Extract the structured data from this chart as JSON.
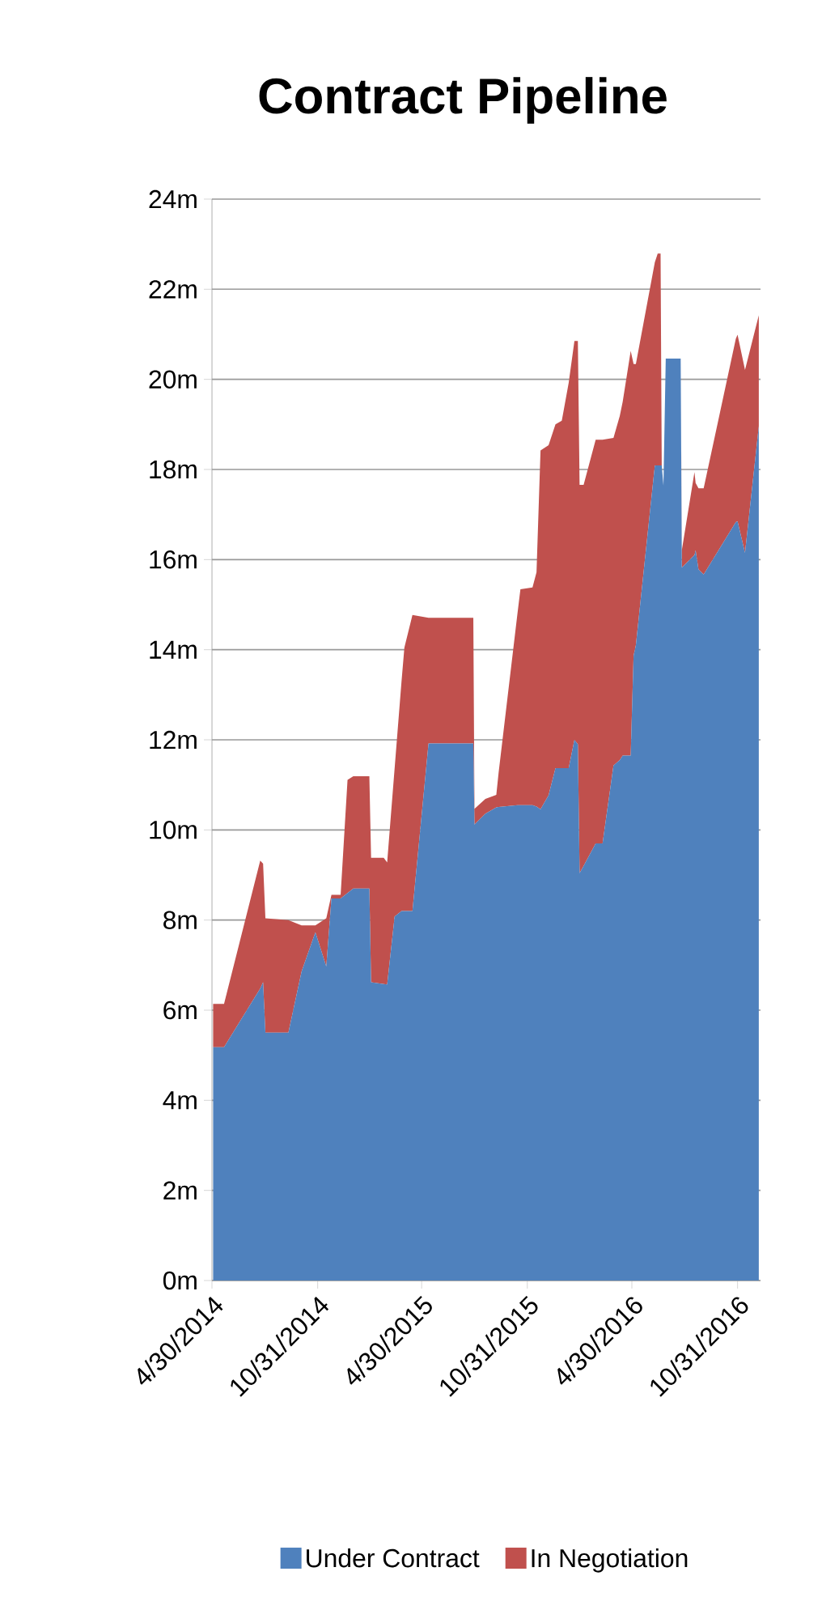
{
  "chart_data": {
    "type": "area",
    "title": "Contract Pipeline",
    "stacked": true,
    "grid": "y",
    "legend": "bottom",
    "x": [
      "2014-05-02",
      "2014-05-21",
      "2014-07-23",
      "2014-07-28",
      "2014-08-01",
      "2014-09-10",
      "2014-10-03",
      "2014-10-27",
      "2014-11-15",
      "2014-11-24",
      "2014-12-10",
      "2014-12-22",
      "2015-01-01",
      "2015-01-29",
      "2015-02-01",
      "2015-02-23",
      "2015-03-01",
      "2015-03-14",
      "2015-03-26",
      "2015-03-31",
      "2015-04-14",
      "2015-05-12",
      "2015-07-29",
      "2015-07-31",
      "2015-08-19",
      "2015-09-07",
      "2015-09-11",
      "2015-10-14",
      "2015-10-19",
      "2015-11-09",
      "2015-11-16",
      "2015-11-23",
      "2015-12-07",
      "2015-12-19",
      "2015-12-30",
      "2016-01-11",
      "2016-01-21",
      "2016-01-27",
      "2016-01-30",
      "2016-02-06",
      "2016-02-27",
      "2016-03-10",
      "2016-03-29",
      "2016-04-09",
      "2016-04-14",
      "2016-04-28",
      "2016-05-03",
      "2016-05-07",
      "2016-06-09",
      "2016-06-14",
      "2016-06-19",
      "2016-06-21",
      "2016-06-24",
      "2016-06-28",
      "2016-07-24",
      "2016-07-26",
      "2016-08-17",
      "2016-08-19",
      "2016-08-24",
      "2016-09-02",
      "2016-10-28",
      "2016-10-31",
      "2016-11-13",
      "2016-12-07"
    ],
    "series": [
      {
        "name": "Under Contract",
        "color": "#4f81bd",
        "values": [
          5.18,
          5.18,
          6.48,
          6.62,
          5.5,
          5.5,
          6.86,
          7.73,
          6.97,
          8.48,
          8.48,
          8.6,
          8.7,
          8.7,
          6.62,
          6.58,
          6.57,
          8.08,
          8.2,
          8.2,
          8.2,
          11.92,
          11.92,
          10.12,
          10.36,
          10.5,
          10.51,
          10.55,
          10.55,
          10.55,
          10.52,
          10.46,
          10.77,
          11.37,
          11.37,
          11.37,
          12.0,
          11.9,
          9.04,
          9.2,
          9.7,
          9.7,
          11.43,
          11.55,
          11.65,
          11.65,
          13.87,
          14.1,
          18.09,
          18.09,
          18.09,
          18.09,
          17.64,
          20.46,
          20.46,
          15.82,
          16.1,
          16.21,
          15.78,
          15.67,
          16.83,
          16.85,
          16.15,
          18.96
        ]
      },
      {
        "name": "In Negotiation",
        "color": "#c0504d",
        "values": [
          0.96,
          0.96,
          2.84,
          2.63,
          2.54,
          2.5,
          1.02,
          0.15,
          1.07,
          0.08,
          0.08,
          2.51,
          2.49,
          2.49,
          2.76,
          2.8,
          2.71,
          3.29,
          5.1,
          5.85,
          6.57,
          2.79,
          2.79,
          0.35,
          0.33,
          0.28,
          0.76,
          4.27,
          4.79,
          4.83,
          5.2,
          7.96,
          7.77,
          7.63,
          7.71,
          8.55,
          8.85,
          8.95,
          8.62,
          8.46,
          8.96,
          8.96,
          7.27,
          7.64,
          7.85,
          8.98,
          6.47,
          6.24,
          4.51,
          4.7,
          4.7,
          0,
          0,
          0,
          0,
          0.39,
          1.84,
          1.49,
          1.8,
          1.91,
          4.07,
          4.14,
          4.06,
          2.46
        ]
      }
    ],
    "xlim": [
      "2014-04-30",
      "2016-12-10"
    ],
    "xticks": [
      {
        "value": "2014-04-30",
        "label": "4/30/2014"
      },
      {
        "value": "2014-10-31",
        "label": "10/31/2014"
      },
      {
        "value": "2015-04-30",
        "label": "4/30/2015"
      },
      {
        "value": "2015-10-31",
        "label": "10/31/2015"
      },
      {
        "value": "2016-04-30",
        "label": "4/30/2016"
      },
      {
        "value": "2016-10-31",
        "label": "10/31/2016"
      }
    ],
    "ylim": [
      0,
      24
    ],
    "yticks": [
      {
        "value": 0,
        "label": "0m"
      },
      {
        "value": 2,
        "label": "2m"
      },
      {
        "value": 4,
        "label": "4m"
      },
      {
        "value": 6,
        "label": "6m"
      },
      {
        "value": 8,
        "label": "8m"
      },
      {
        "value": 10,
        "label": "10m"
      },
      {
        "value": 12,
        "label": "12m"
      },
      {
        "value": 14,
        "label": "14m"
      },
      {
        "value": 16,
        "label": "16m"
      },
      {
        "value": 18,
        "label": "18m"
      },
      {
        "value": 20,
        "label": "20m"
      },
      {
        "value": 22,
        "label": "22m"
      },
      {
        "value": 24,
        "label": "24m"
      }
    ]
  }
}
